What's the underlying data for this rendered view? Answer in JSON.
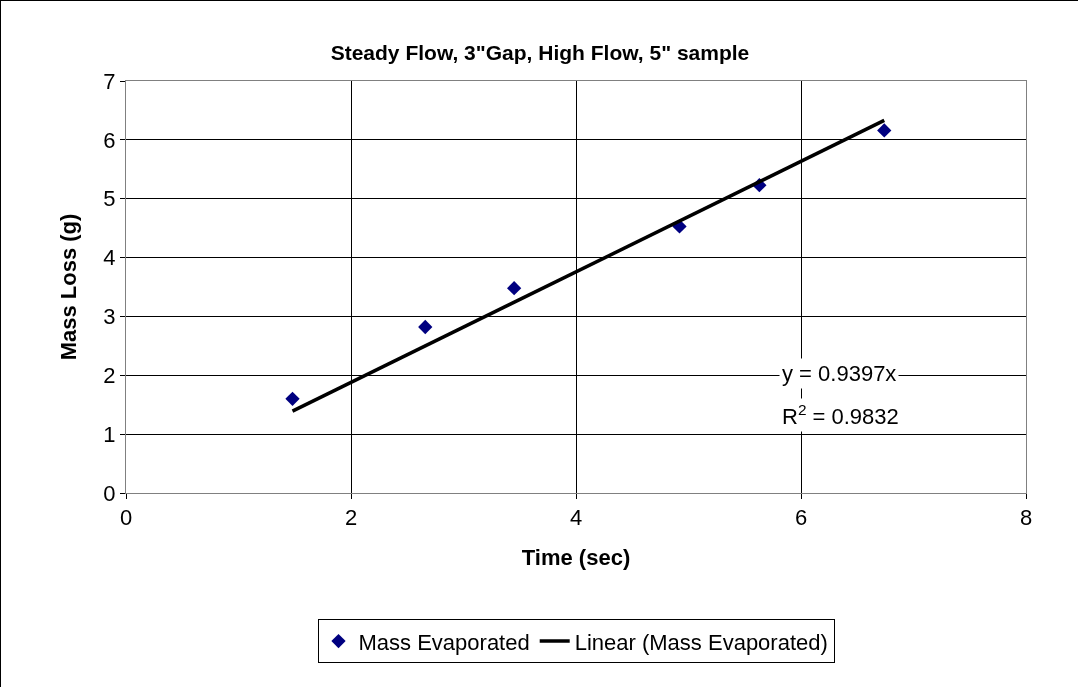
{
  "chart_data": {
    "type": "scatter",
    "title": "Steady Flow, 3\"Gap, High Flow, 5\" sample",
    "xlabel": "Time (sec)",
    "ylabel": "Mass Loss (g)",
    "series": [
      {
        "name": "Mass Evaporated",
        "color": "#000080",
        "marker": "diamond",
        "x": [
          1.48,
          2.66,
          3.45,
          4.92,
          5.63,
          6.74
        ],
        "values": [
          1.6,
          2.82,
          3.48,
          4.53,
          5.23,
          6.16
        ]
      },
      {
        "name": "Linear (Mass Evaporated)",
        "type": "line",
        "color": "#000000",
        "marker": "none",
        "x": [
          1.48,
          6.74
        ],
        "values": [
          1.39,
          6.33
        ]
      }
    ],
    "xlim": [
      0,
      8
    ],
    "xticks": [
      0,
      2,
      4,
      6,
      8
    ],
    "ylim": [
      0,
      7
    ],
    "yticks": [
      0,
      1,
      2,
      3,
      4,
      5,
      6,
      7
    ],
    "grid": true,
    "legend": "bottom",
    "annotations": [
      "y = 0.9397x",
      "R$^{2}$ = 0.9832"
    ]
  }
}
